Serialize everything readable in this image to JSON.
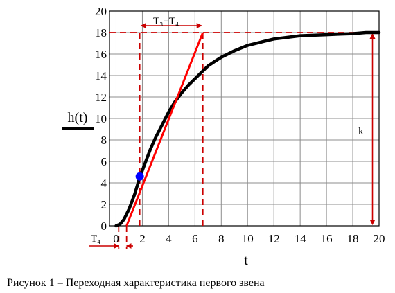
{
  "chart_data": {
    "type": "line",
    "title": "",
    "xlabel": "t",
    "ylabel": "h(t)",
    "xlim": [
      -0.5,
      20
    ],
    "ylim": [
      0,
      20
    ],
    "xticks": [
      0,
      2,
      4,
      6,
      8,
      10,
      12,
      14,
      16,
      18,
      20
    ],
    "yticks": [
      0,
      2,
      4,
      6,
      8,
      10,
      12,
      14,
      16,
      18,
      20
    ],
    "grid": true,
    "series": [
      {
        "name": "",
        "color": "#000000",
        "x": [
          0.0,
          0.3,
          0.6,
          1.0,
          1.4,
          1.8,
          2.2,
          2.6,
          3.0,
          3.5,
          4.0,
          4.5,
          5.0,
          5.5,
          6.0,
          6.5,
          7.0,
          7.5,
          8.0,
          9.0,
          10.0,
          11.0,
          12.0,
          13.0,
          14.0,
          15.0,
          16.0,
          17.0,
          18.0,
          19.0,
          20.0
        ],
        "y": [
          0.0,
          0.15,
          0.6,
          1.6,
          2.9,
          4.5,
          5.8,
          7.1,
          8.2,
          9.4,
          10.6,
          11.6,
          12.4,
          13.1,
          13.7,
          14.3,
          14.9,
          15.3,
          15.7,
          16.3,
          16.8,
          17.1,
          17.4,
          17.55,
          17.7,
          17.75,
          17.8,
          17.85,
          17.9,
          18.0,
          18.0
        ]
      }
    ],
    "tangent": {
      "color": "#ff0000",
      "x": [
        0.8,
        6.6
      ],
      "y": [
        0.0,
        18.0
      ]
    },
    "inflection_point": {
      "color": "#0000ff",
      "x": 1.8,
      "y": 4.6
    },
    "reference_lines": {
      "color": "#cc0000",
      "vertical_x": [
        0.2,
        1.8,
        6.6,
        19.5
      ],
      "horizontal_y": [
        18.0
      ]
    },
    "annotations": {
      "t3_t4_label": "T₃+T₄",
      "t4_label": "T₄",
      "k_label": "k"
    }
  },
  "caption": "Рисунок 1 – Переходная характеристика первого звена"
}
